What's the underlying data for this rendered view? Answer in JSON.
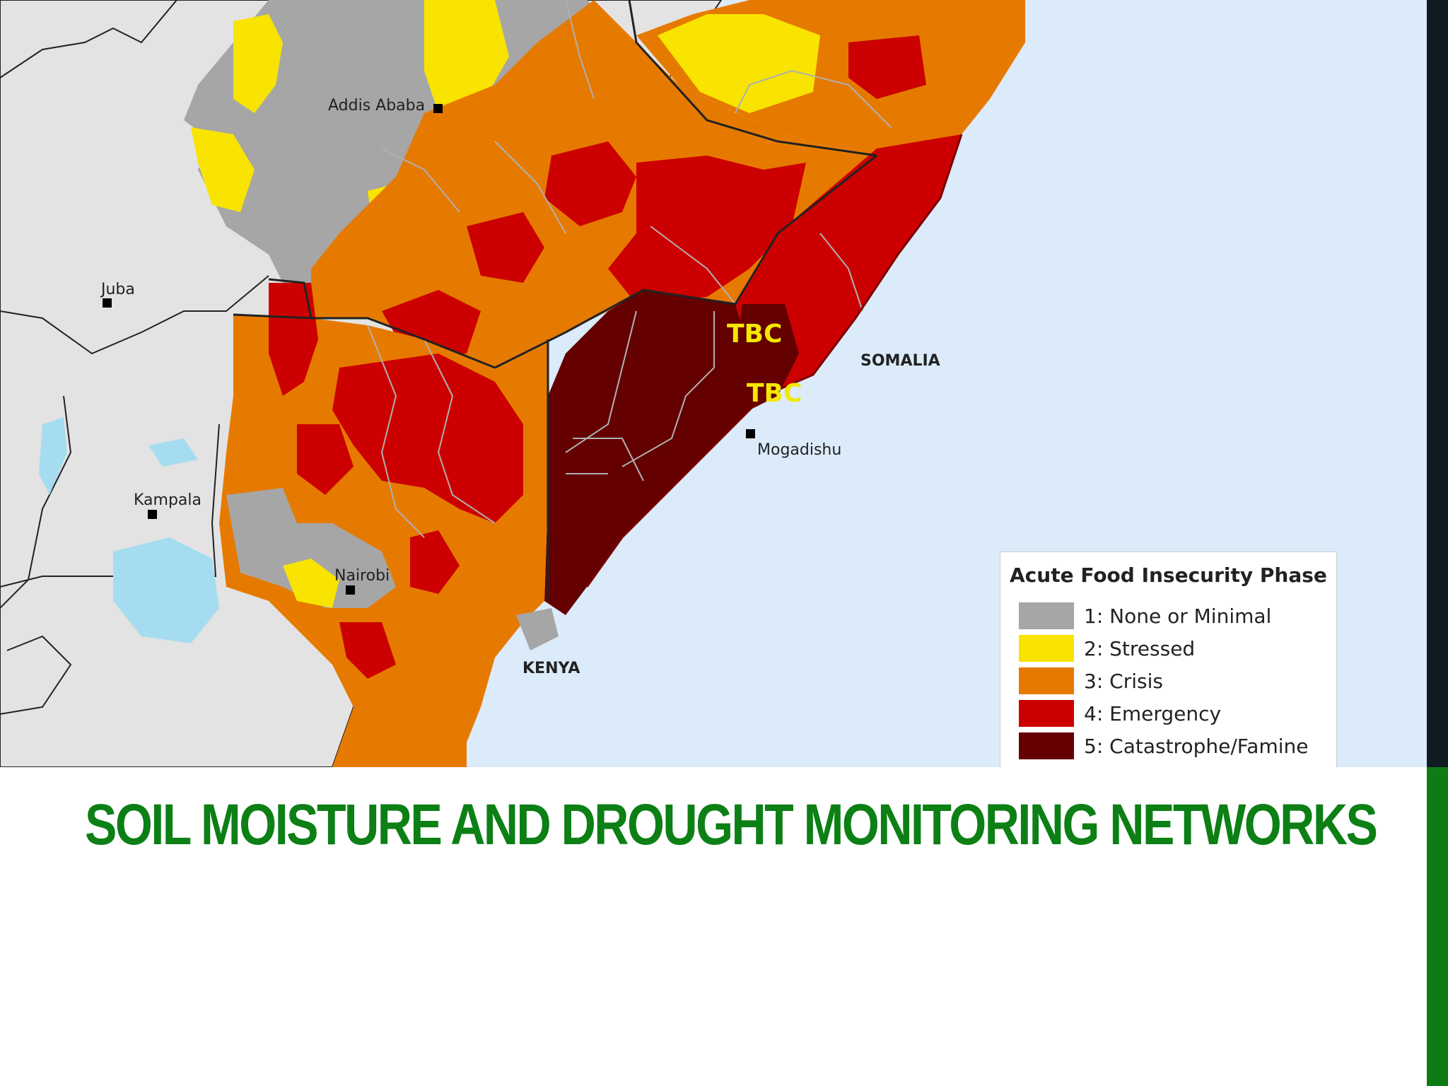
{
  "title": "SOIL MOISTURE AND DROUGHT MONITORING NETWORKS",
  "map": {
    "cities": [
      {
        "name": "Addis Ababa",
        "key": "addis"
      },
      {
        "name": "Juba",
        "key": "juba"
      },
      {
        "name": "Kampala",
        "key": "kampala"
      },
      {
        "name": "Nairobi",
        "key": "nairobi"
      },
      {
        "name": "Mogadishu",
        "key": "mogadishu"
      }
    ],
    "countries": [
      "SOMALIA",
      "KENYA"
    ],
    "annotations": [
      "TBC",
      "TBC"
    ]
  },
  "legend": {
    "title": "Acute Food Insecurity Phase",
    "items": [
      {
        "label": "1: None or Minimal",
        "color": "#a6a6a6"
      },
      {
        "label": "2: Stressed",
        "color": "#f8e400"
      },
      {
        "label": "3: Crisis",
        "color": "#e67a00"
      },
      {
        "label": "4: Emergency",
        "color": "#cc0000"
      },
      {
        "label": "5: Catastrophe/Famine",
        "color": "#640000"
      }
    ]
  },
  "colors": {
    "ocean": "#dcebfa",
    "land": "#e3e3e3",
    "title_green": "#0c7f15"
  }
}
